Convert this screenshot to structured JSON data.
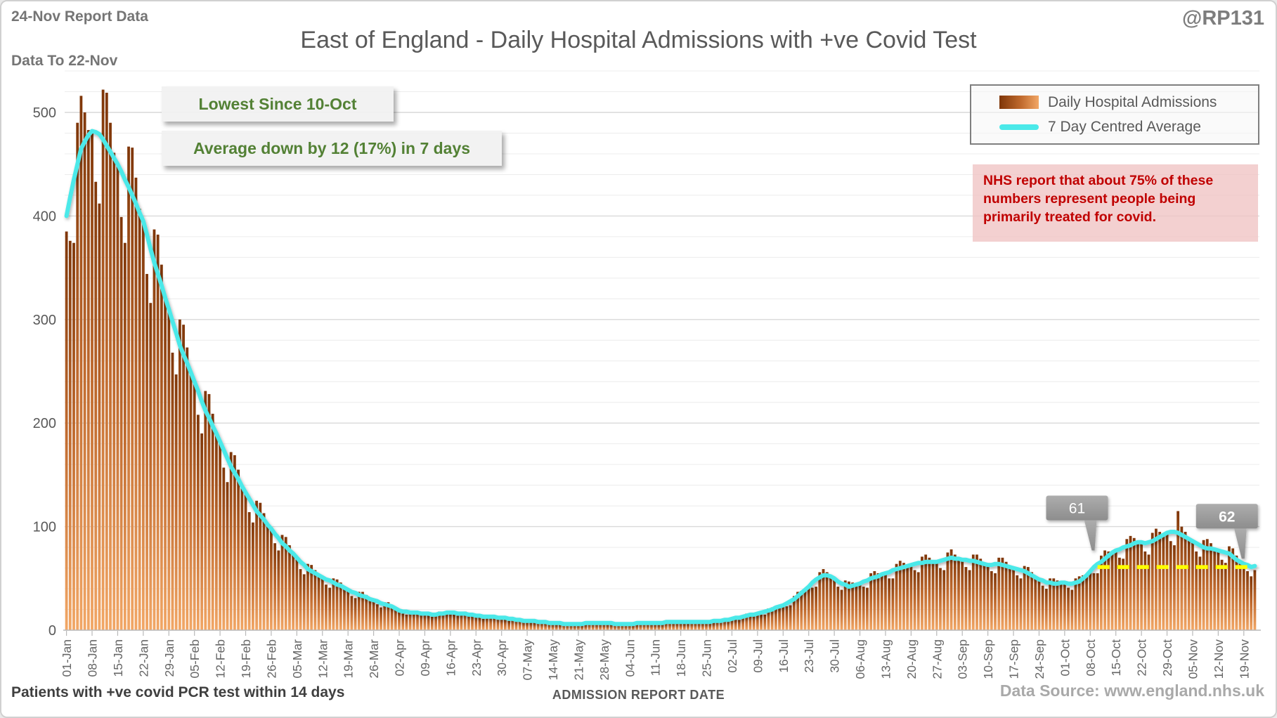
{
  "header": {
    "report_line1": "24-Nov Report Data",
    "report_line2": "Data To 22-Nov",
    "handle": "@RP131",
    "title": "East of England - Daily Hospital Admissions with +ve Covid Test"
  },
  "annotations": {
    "lowest": "Lowest Since 10-Oct",
    "average_change": "Average down by 12 (17%) in 7 days",
    "nhs_note": "NHS report that about 75% of these numbers represent people being primarily treated for covid."
  },
  "legend": {
    "bars_label": "Daily Hospital Admissions",
    "line_label": "7 Day Centred Average"
  },
  "footer": {
    "left_note": "Patients with +ve covid PCR test within 14 days",
    "xlabel": "ADMISSION REPORT DATE",
    "source": "Data Source: www.england.nhs.uk"
  },
  "chart_data": {
    "type": "bar+line",
    "title": "East of England - Daily Hospital Admissions with +ve Covid Test",
    "xlabel": "ADMISSION REPORT DATE",
    "ylabel": "",
    "ylim": [
      0,
      540
    ],
    "y_ticks": [
      0,
      100,
      200,
      300,
      400,
      500
    ],
    "gridline_minor_step": 20,
    "grid": true,
    "legend_position": "top-right",
    "x_start": "01-Jan",
    "x_end": "22-Nov",
    "x_tick_interval_days": 7,
    "x_tick_labels": [
      "01-Jan",
      "08-Jan",
      "15-Jan",
      "22-Jan",
      "29-Jan",
      "05-Feb",
      "12-Feb",
      "19-Feb",
      "26-Feb",
      "05-Mar",
      "12-Mar",
      "19-Mar",
      "26-Mar",
      "02-Apr",
      "09-Apr",
      "16-Apr",
      "23-Apr",
      "30-Apr",
      "07-May",
      "14-May",
      "21-May",
      "28-May",
      "04-Jun",
      "11-Jun",
      "18-Jun",
      "25-Jun",
      "02-Jul",
      "09-Jul",
      "16-Jul",
      "23-Jul",
      "30-Jul",
      "06-Aug",
      "13-Aug",
      "20-Aug",
      "27-Aug",
      "03-Sep",
      "10-Sep",
      "17-Sep",
      "24-Sep",
      "01-Oct",
      "08-Oct",
      "15-Oct",
      "22-Oct",
      "29-Oct",
      "05-Nov",
      "12-Nov",
      "19-Nov"
    ],
    "series": [
      {
        "name": "Daily Hospital Admissions",
        "type": "bar",
        "values": [
          385,
          376,
          374,
          490,
          516,
          500,
          483,
          482,
          433,
          412,
          522,
          519,
          490,
          461,
          450,
          399,
          374,
          467,
          466,
          437,
          407,
          395,
          344,
          316,
          387,
          382,
          353,
          324,
          310,
          268,
          247,
          300,
          295,
          273,
          251,
          240,
          208,
          190,
          231,
          228,
          209,
          192,
          182,
          157,
          143,
          172,
          169,
          155,
          140,
          133,
          114,
          104,
          125,
          123,
          113,
          103,
          98,
          84,
          77,
          92,
          90,
          82,
          75,
          70,
          59,
          54,
          64,
          63,
          58,
          54,
          51,
          44,
          41,
          50,
          49,
          46,
          41,
          39,
          33,
          31,
          37,
          37,
          34,
          30,
          29,
          25,
          22,
          27,
          27,
          23,
          21,
          19,
          16,
          15,
          19,
          19,
          18,
          16,
          16,
          14,
          13,
          16,
          18,
          17,
          17,
          17,
          15,
          14,
          17,
          18,
          16,
          15,
          14,
          13,
          11,
          14,
          14,
          14,
          12,
          12,
          11,
          9,
          12,
          11,
          11,
          9,
          9,
          8,
          8,
          9,
          9,
          8,
          7,
          7,
          6,
          6,
          7,
          7,
          6,
          6,
          6,
          5,
          6,
          8,
          8,
          7,
          7,
          7,
          6,
          6,
          7,
          7,
          6,
          6,
          6,
          5,
          6,
          8,
          8,
          7,
          7,
          7,
          6,
          6,
          9,
          9,
          8,
          8,
          8,
          7,
          7,
          9,
          9,
          8,
          8,
          8,
          7,
          8,
          10,
          10,
          11,
          10,
          11,
          11,
          10,
          14,
          16,
          16,
          15,
          16,
          15,
          15,
          21,
          22,
          23,
          23,
          24,
          23,
          24,
          33,
          37,
          38,
          39,
          42,
          41,
          42,
          56,
          59,
          56,
          53,
          50,
          42,
          39,
          48,
          47,
          46,
          44,
          45,
          42,
          41,
          55,
          57,
          55,
          55,
          55,
          50,
          50,
          64,
          67,
          65,
          63,
          63,
          58,
          56,
          71,
          73,
          70,
          67,
          66,
          60,
          58,
          75,
          78,
          73,
          70,
          68,
          61,
          58,
          73,
          73,
          69,
          65,
          63,
          57,
          55,
          70,
          70,
          66,
          62,
          60,
          53,
          50,
          62,
          61,
          56,
          52,
          49,
          43,
          40,
          50,
          50,
          48,
          46,
          46,
          41,
          39,
          50,
          52,
          53,
          54,
          57,
          55,
          55,
          72,
          77,
          76,
          76,
          77,
          70,
          69,
          88,
          91,
          89,
          86,
          85,
          76,
          73,
          94,
          98,
          95,
          93,
          94,
          86,
          82,
          115,
          100,
          95,
          89,
          86,
          76,
          71,
          87,
          88,
          84,
          79,
          77,
          68,
          65,
          81,
          79,
          72,
          67,
          64,
          57,
          52,
          58
        ]
      },
      {
        "name": "7 Day Centred Average",
        "type": "line",
        "values": [
          400,
          418,
          435,
          450,
          465,
          472,
          478,
          482,
          481,
          479,
          474,
          468,
          462,
          456,
          450,
          443,
          435,
          428,
          420,
          412,
          403,
          395,
          382,
          368,
          355,
          344,
          333,
          321,
          310,
          298,
          287,
          275,
          266,
          258,
          249,
          240,
          231,
          221,
          212,
          205,
          197,
          190,
          182,
          174,
          166,
          158,
          152,
          146,
          139,
          133,
          127,
          121,
          115,
          111,
          107,
          102,
          98,
          93,
          89,
          84,
          81,
          77,
          74,
          70,
          66,
          63,
          59,
          57,
          55,
          53,
          51,
          49,
          48,
          46,
          44,
          43,
          41,
          39,
          37,
          36,
          34,
          33,
          32,
          30,
          29,
          28,
          26,
          25,
          24,
          23,
          21,
          19,
          18,
          18,
          17,
          17,
          17,
          16,
          16,
          16,
          15,
          15,
          16,
          16,
          17,
          17,
          17,
          16,
          16,
          16,
          15,
          15,
          14,
          14,
          13,
          13,
          13,
          13,
          12,
          12,
          12,
          11,
          11,
          10,
          10,
          9,
          9,
          9,
          9,
          8,
          8,
          8,
          7,
          7,
          7,
          7,
          6,
          6,
          6,
          6,
          6,
          6,
          7,
          7,
          7,
          7,
          7,
          7,
          7,
          7,
          6,
          6,
          6,
          6,
          6,
          6,
          7,
          7,
          7,
          7,
          7,
          7,
          7,
          7,
          8,
          8,
          8,
          8,
          8,
          8,
          8,
          8,
          8,
          8,
          8,
          8,
          8,
          9,
          9,
          9,
          10,
          10,
          11,
          12,
          12,
          13,
          14,
          15,
          15,
          16,
          17,
          18,
          19,
          20,
          22,
          23,
          24,
          26,
          28,
          30,
          33,
          36,
          39,
          42,
          46,
          49,
          51,
          53,
          53,
          52,
          50,
          47,
          45,
          44,
          42,
          43,
          44,
          45,
          47,
          48,
          50,
          51,
          52,
          54,
          55,
          56,
          58,
          59,
          60,
          61,
          62,
          63,
          64,
          65,
          65,
          66,
          66,
          66,
          66,
          67,
          68,
          69,
          70,
          69,
          69,
          68,
          68,
          67,
          67,
          66,
          65,
          64,
          63,
          63,
          64,
          64,
          63,
          62,
          61,
          60,
          59,
          58,
          57,
          55,
          53,
          51,
          49,
          48,
          46,
          46,
          45,
          45,
          46,
          46,
          45,
          45,
          46,
          47,
          50,
          53,
          57,
          61,
          64,
          66,
          69,
          72,
          75,
          77,
          78,
          80,
          81,
          82,
          84,
          85,
          85,
          84,
          85,
          86,
          88,
          90,
          92,
          94,
          95,
          95,
          94,
          92,
          90,
          88,
          86,
          84,
          82,
          80,
          79,
          79,
          78,
          77,
          76,
          75,
          74,
          71,
          68,
          66,
          64,
          63,
          61,
          62
        ]
      }
    ],
    "reference_line": {
      "value": 61,
      "start_day": 282,
      "end_day": 324,
      "style": "dashed",
      "color": "#ffff00"
    },
    "callouts": [
      {
        "label": "61",
        "day": 281,
        "tip_value": 77,
        "bold": false
      },
      {
        "label": "62",
        "day": 322,
        "tip_value": 69,
        "bold": true
      }
    ],
    "colors": {
      "bar_top": "#7f3608",
      "bar_mid": "#c06a2e",
      "bar_bottom": "#f2a766",
      "line": "#4be9e9",
      "reference": "#ffff00",
      "grid_minor": "#ececec",
      "grid_major": "#d9d9d9",
      "axis": "#b9b9b9",
      "tick_text": "#666666",
      "y_text": "#595959",
      "callout_bg": "#9b9b9b",
      "callout_text": "#ffffff",
      "annotation_green": "#538135",
      "nhs_red": "#c00000",
      "nhs_bg": "rgba(240,196,196,0.8)"
    }
  }
}
